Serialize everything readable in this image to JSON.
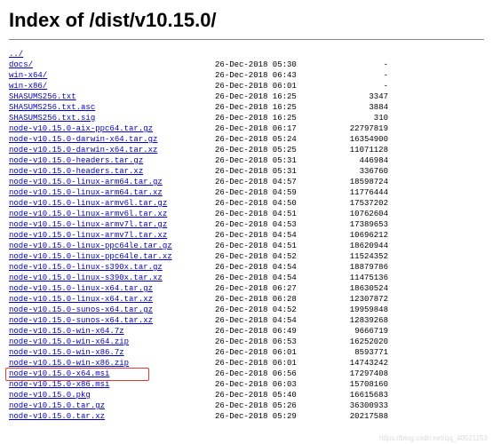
{
  "title": "Index of /dist/v10.15.0/",
  "parent_link": "../",
  "watermark": "https://blog.csdn.net/qq_40521153",
  "entries": [
    {
      "name": "docs/",
      "date": "26-Dec-2018 05:30",
      "size": "-"
    },
    {
      "name": "win-x64/",
      "date": "26-Dec-2018 06:43",
      "size": "-"
    },
    {
      "name": "win-x86/",
      "date": "26-Dec-2018 06:01",
      "size": "-"
    },
    {
      "name": "SHASUMS256.txt",
      "date": "26-Dec-2018 16:25",
      "size": "3347"
    },
    {
      "name": "SHASUMS256.txt.asc",
      "date": "26-Dec-2018 16:25",
      "size": "3884"
    },
    {
      "name": "SHASUMS256.txt.sig",
      "date": "26-Dec-2018 16:25",
      "size": "310"
    },
    {
      "name": "node-v10.15.0-aix-ppc64.tar.gz",
      "date": "26-Dec-2018 06:17",
      "size": "22797819"
    },
    {
      "name": "node-v10.15.0-darwin-x64.tar.gz",
      "date": "26-Dec-2018 05:24",
      "size": "16354900"
    },
    {
      "name": "node-v10.15.0-darwin-x64.tar.xz",
      "date": "26-Dec-2018 05:25",
      "size": "11071128"
    },
    {
      "name": "node-v10.15.0-headers.tar.gz",
      "date": "26-Dec-2018 05:31",
      "size": "446984"
    },
    {
      "name": "node-v10.15.0-headers.tar.xz",
      "date": "26-Dec-2018 05:31",
      "size": "336760"
    },
    {
      "name": "node-v10.15.0-linux-arm64.tar.gz",
      "date": "26-Dec-2018 04:57",
      "size": "18598724"
    },
    {
      "name": "node-v10.15.0-linux-arm64.tar.xz",
      "date": "26-Dec-2018 04:59",
      "size": "11776444"
    },
    {
      "name": "node-v10.15.0-linux-armv6l.tar.gz",
      "date": "26-Dec-2018 04:50",
      "size": "17537202"
    },
    {
      "name": "node-v10.15.0-linux-armv6l.tar.xz",
      "date": "26-Dec-2018 04:51",
      "size": "10762604"
    },
    {
      "name": "node-v10.15.0-linux-armv7l.tar.gz",
      "date": "26-Dec-2018 04:53",
      "size": "17389653"
    },
    {
      "name": "node-v10.15.0-linux-armv7l.tar.xz",
      "date": "26-Dec-2018 04:54",
      "size": "10696212"
    },
    {
      "name": "node-v10.15.0-linux-ppc64le.tar.gz",
      "date": "26-Dec-2018 04:51",
      "size": "18620944"
    },
    {
      "name": "node-v10.15.0-linux-ppc64le.tar.xz",
      "date": "26-Dec-2018 04:52",
      "size": "11524352"
    },
    {
      "name": "node-v10.15.0-linux-s390x.tar.gz",
      "date": "26-Dec-2018 04:54",
      "size": "18879786"
    },
    {
      "name": "node-v10.15.0-linux-s390x.tar.xz",
      "date": "26-Dec-2018 04:54",
      "size": "11475136"
    },
    {
      "name": "node-v10.15.0-linux-x64.tar.gz",
      "date": "26-Dec-2018 06:27",
      "size": "18630524"
    },
    {
      "name": "node-v10.15.0-linux-x64.tar.xz",
      "date": "26-Dec-2018 06:28",
      "size": "12307872"
    },
    {
      "name": "node-v10.15.0-sunos-x64.tar.gz",
      "date": "26-Dec-2018 04:52",
      "size": "19959848"
    },
    {
      "name": "node-v10.15.0-sunos-x64.tar.xz",
      "date": "26-Dec-2018 04:54",
      "size": "12839268"
    },
    {
      "name": "node-v10.15.0-win-x64.7z",
      "date": "26-Dec-2018 06:49",
      "size": "9666719"
    },
    {
      "name": "node-v10.15.0-win-x64.zip",
      "date": "26-Dec-2018 06:53",
      "size": "16252020"
    },
    {
      "name": "node-v10.15.0-win-x86.7z",
      "date": "26-Dec-2018 06:01",
      "size": "8593771"
    },
    {
      "name": "node-v10.15.0-win-x86.zip",
      "date": "26-Dec-2018 06:01",
      "size": "14743242"
    },
    {
      "name": "node-v10.15.0-x64.msi",
      "date": "26-Dec-2018 06:56",
      "size": "17297408",
      "highlight": true
    },
    {
      "name": "node-v10.15.0-x86.msi",
      "date": "26-Dec-2018 06:03",
      "size": "15708160"
    },
    {
      "name": "node-v10.15.0.pkg",
      "date": "26-Dec-2018 05:40",
      "size": "16615683"
    },
    {
      "name": "node-v10.15.0.tar.gz",
      "date": "26-Dec-2018 05:26",
      "size": "36300933"
    },
    {
      "name": "node-v10.15.0.tar.xz",
      "date": "26-Dec-2018 05:29",
      "size": "20217588"
    }
  ]
}
